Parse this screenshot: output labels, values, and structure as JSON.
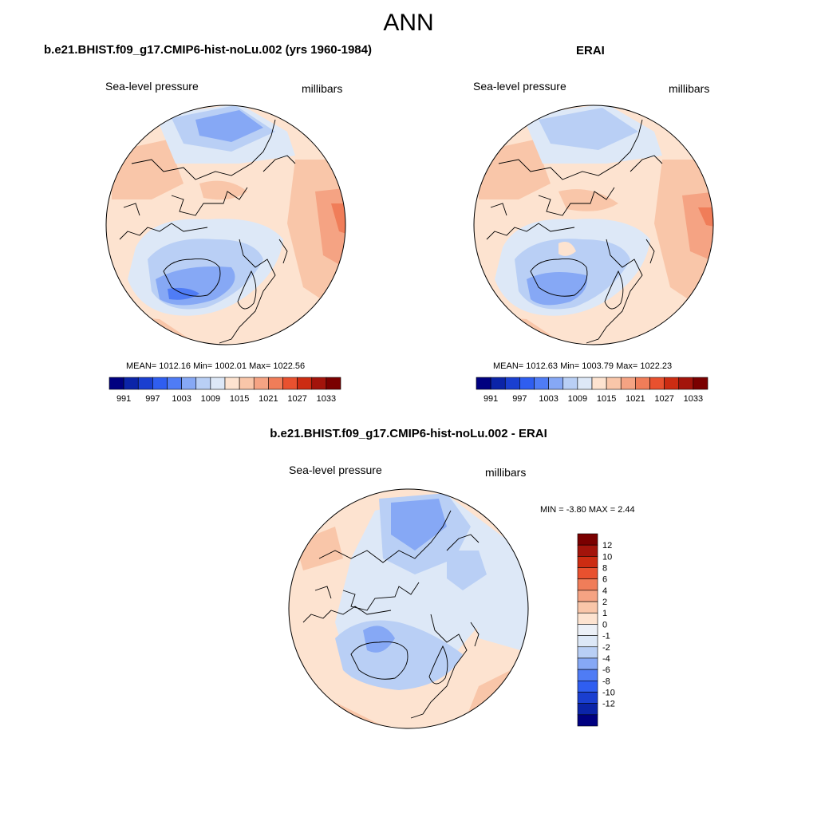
{
  "title": "ANN",
  "panels": [
    {
      "title": "b.e21.BHIST.f09_g17.CMIP6-hist-noLu.002 (yrs 1960-1984)",
      "left_label": "Sea-level pressure",
      "right_label": "millibars",
      "stats": "MEAN= 1012.16  Min= 1002.01  Max= 1022.56",
      "colorbar_ticks": [
        "991",
        "997",
        "1003",
        "1009",
        "1015",
        "1021",
        "1027",
        "1033"
      ]
    },
    {
      "title": "ERAI",
      "left_label": "Sea-level pressure",
      "right_label": "millibars",
      "stats": "MEAN= 1012.63  Min= 1003.79  Max= 1022.23",
      "colorbar_ticks": [
        "991",
        "997",
        "1003",
        "1009",
        "1015",
        "1021",
        "1027",
        "1033"
      ]
    },
    {
      "title": "b.e21.BHIST.f09_g17.CMIP6-hist-noLu.002 - ERAI",
      "left_label": "Sea-level pressure",
      "right_label": "millibars",
      "stats": "MIN =  -3.80 MAX =   2.44",
      "colorbar_ticks": [
        "12",
        "10",
        "8",
        "6",
        "4",
        "2",
        "1",
        "0",
        "-1",
        "-2",
        "-4",
        "-6",
        "-8",
        "-10",
        "-12"
      ]
    }
  ],
  "colors": {
    "abs_scale": [
      "#000080",
      "#0b24a8",
      "#1a3fd0",
      "#2f5ef0",
      "#4f7cf5",
      "#86a8f5",
      "#b9cff5",
      "#dde8f7",
      "#fde3d0",
      "#f9c6a9",
      "#f5a383",
      "#f07d59",
      "#e8512f",
      "#cc2c12",
      "#a3140b",
      "#7a0000"
    ],
    "diff_scale": [
      "#000080",
      "#0b24a8",
      "#1a3fd0",
      "#2f5ef0",
      "#4f7cf5",
      "#86a8f5",
      "#b9cff5",
      "#dde8f7",
      "#ecf0f7",
      "#fde3d0",
      "#f9c6a9",
      "#f5a383",
      "#f07d59",
      "#e8512f",
      "#cc2c12",
      "#a3140b",
      "#7a0000"
    ]
  }
}
